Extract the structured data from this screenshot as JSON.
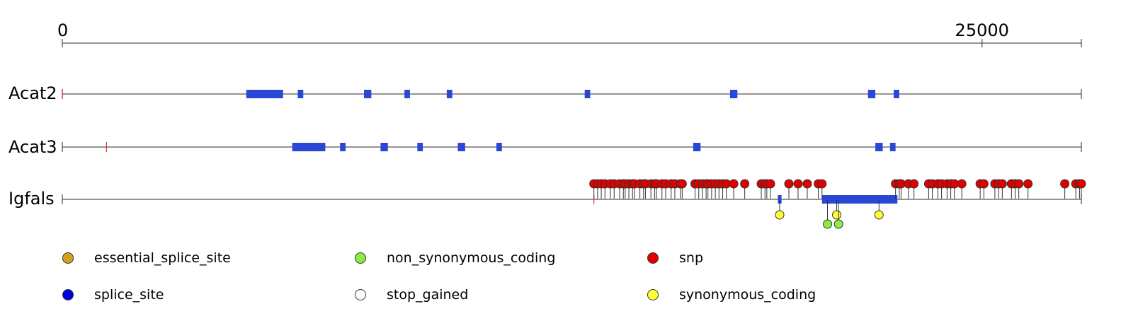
{
  "scale": {
    "min": 0,
    "max": 27700,
    "tick_labels": [
      "0",
      "25000"
    ],
    "tick_values": [
      0,
      25000
    ]
  },
  "genes": [
    {
      "name": "Acat2",
      "markers": [
        0
      ],
      "exons": [
        [
          5000,
          6000
        ],
        [
          6400,
          6550
        ],
        [
          8200,
          8400
        ],
        [
          9300,
          9450
        ],
        [
          10450,
          10600
        ],
        [
          14200,
          14350
        ],
        [
          18150,
          18350
        ],
        [
          21900,
          22100
        ],
        [
          22600,
          22750
        ]
      ],
      "variants": []
    },
    {
      "name": "Acat3",
      "markers": [
        1200
      ],
      "exons": [
        [
          6250,
          7150
        ],
        [
          7550,
          7700
        ],
        [
          8650,
          8850
        ],
        [
          9650,
          9800
        ],
        [
          10750,
          10950
        ],
        [
          11800,
          11950
        ],
        [
          17150,
          17350
        ],
        [
          22100,
          22300
        ],
        [
          22500,
          22650
        ]
      ],
      "variants": []
    },
    {
      "name": "Igfals",
      "markers": [
        14450
      ],
      "exons": [
        [
          19450,
          19550
        ],
        [
          20650,
          22700
        ]
      ],
      "variants": [
        {
          "type": "snp",
          "positions": [
            14450,
            14550,
            14650,
            14750,
            14900,
            15000,
            15150,
            15250,
            15300,
            15400,
            15500,
            15550,
            15700,
            15800,
            15850,
            16000,
            16100,
            16150,
            16300,
            16400,
            16550,
            16650,
            16800,
            16850,
            17200,
            17300,
            17400,
            17500,
            17550,
            17650,
            17750,
            17850,
            17950,
            18050,
            18250,
            18550,
            19000,
            19100,
            19150,
            19250,
            19750,
            20000,
            20250,
            20550,
            20650,
            22650,
            22750,
            22800,
            23000,
            23150,
            23550,
            23650,
            23800,
            23900,
            24050,
            24150,
            24250,
            24450,
            24950,
            25050,
            25350,
            25450,
            25550,
            25800,
            25900,
            26000,
            26250,
            27250,
            27550,
            27650,
            27700
          ]
        },
        {
          "type": "synonymous_coding",
          "positions": [
            19500,
            21050,
            22200
          ],
          "lane": 0
        },
        {
          "type": "non_synonymous_coding",
          "positions": [
            20800,
            21100
          ],
          "lane": 1
        }
      ]
    }
  ],
  "colors": {
    "axis": "#555555",
    "exon": "#2a47d6",
    "marker": "#e0302a",
    "essential_splice_site": "#d4a020",
    "non_synonymous_coding": "#88ee44",
    "snp": "#e00000",
    "splice_site": "#0000dd",
    "stop_gained": "#ffffff",
    "synonymous_coding": "#ffff33"
  },
  "legend": [
    {
      "key": "essential_splice_site",
      "label": "essential_splice_site"
    },
    {
      "key": "non_synonymous_coding",
      "label": "non_synonymous_coding"
    },
    {
      "key": "snp",
      "label": "snp"
    },
    {
      "key": "splice_site",
      "label": "splice_site"
    },
    {
      "key": "stop_gained",
      "label": "stop_gained"
    },
    {
      "key": "synonymous_coding",
      "label": "synonymous_coding"
    }
  ]
}
